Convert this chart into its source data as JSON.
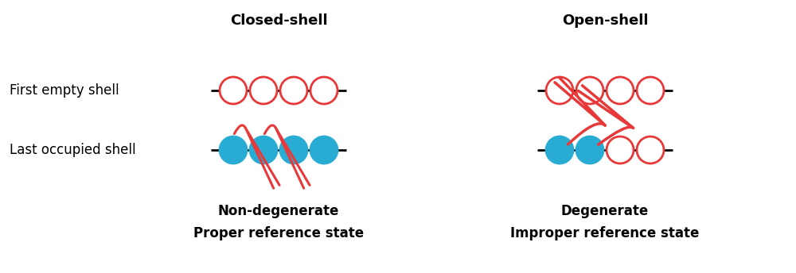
{
  "title_left": "Closed-shell",
  "title_right": "Open-shell",
  "label_top": "First empty shell",
  "label_bottom": "Last occupied shell",
  "subtitle_left_1": "Non-degenerate",
  "subtitle_left_2": "Proper reference state",
  "subtitle_right_1": "Degenerate",
  "subtitle_right_2": "Improper reference state",
  "bg_color": "#ffffff",
  "line_color": "#000000",
  "filled_color": "#29acd4",
  "empty_color": "#ffffff",
  "circle_edge_color": "#e8393a",
  "arrow_color": "#e8393a",
  "title_fontsize": 13,
  "label_fontsize": 12,
  "subtitle_fontsize": 12
}
